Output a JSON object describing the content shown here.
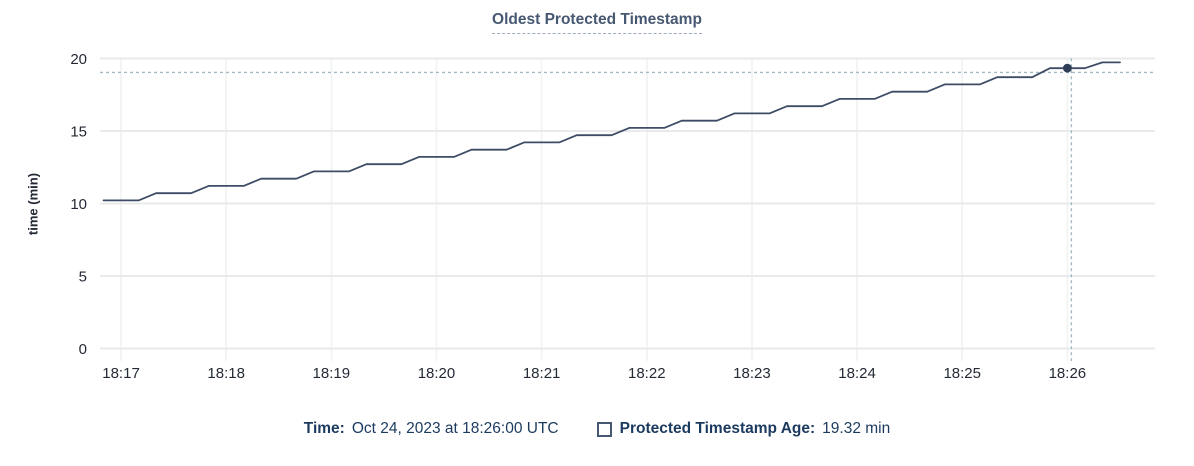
{
  "chart_data": {
    "type": "line",
    "title": "Oldest Protected Timestamp",
    "xlabel": "",
    "ylabel": "time (min)",
    "ylim": [
      0,
      20
    ],
    "yticks": [
      0,
      5,
      10,
      15,
      20
    ],
    "x_ticks": [
      "18:17",
      "18:18",
      "18:19",
      "18:20",
      "18:21",
      "18:22",
      "18:23",
      "18:24",
      "18:25",
      "18:26"
    ],
    "x_range": [
      "18:16:48",
      "18:26:50"
    ],
    "grid": true,
    "legend_position": "bottom",
    "series": [
      {
        "name": "Protected Timestamp Age",
        "color": "#3e4c66",
        "points": [
          [
            "18:16:50",
            10.2
          ],
          [
            "18:17:10",
            10.2
          ],
          [
            "18:17:20",
            10.7
          ],
          [
            "18:17:40",
            10.7
          ],
          [
            "18:17:50",
            11.2
          ],
          [
            "18:18:10",
            11.2
          ],
          [
            "18:18:20",
            11.7
          ],
          [
            "18:18:40",
            11.7
          ],
          [
            "18:18:50",
            12.2
          ],
          [
            "18:19:10",
            12.2
          ],
          [
            "18:19:20",
            12.7
          ],
          [
            "18:19:40",
            12.7
          ],
          [
            "18:19:50",
            13.2
          ],
          [
            "18:20:10",
            13.2
          ],
          [
            "18:20:20",
            13.7
          ],
          [
            "18:20:40",
            13.7
          ],
          [
            "18:20:50",
            14.2
          ],
          [
            "18:21:10",
            14.2
          ],
          [
            "18:21:20",
            14.7
          ],
          [
            "18:21:40",
            14.7
          ],
          [
            "18:21:50",
            15.2
          ],
          [
            "18:22:10",
            15.2
          ],
          [
            "18:22:20",
            15.7
          ],
          [
            "18:22:40",
            15.7
          ],
          [
            "18:22:50",
            16.2
          ],
          [
            "18:23:10",
            16.2
          ],
          [
            "18:23:20",
            16.7
          ],
          [
            "18:23:40",
            16.7
          ],
          [
            "18:23:50",
            17.2
          ],
          [
            "18:24:10",
            17.2
          ],
          [
            "18:24:20",
            17.7
          ],
          [
            "18:24:40",
            17.7
          ],
          [
            "18:24:50",
            18.2
          ],
          [
            "18:25:10",
            18.2
          ],
          [
            "18:25:20",
            18.7
          ],
          [
            "18:25:40",
            18.7
          ],
          [
            "18:25:50",
            19.32
          ],
          [
            "18:26:10",
            19.32
          ],
          [
            "18:26:20",
            19.72
          ],
          [
            "18:26:30",
            19.72
          ]
        ]
      }
    ],
    "hover": {
      "time": "18:26:00",
      "value": 19.32
    }
  },
  "legend": {
    "time_label": "Time:",
    "time_value": "Oct 24, 2023 at 18:26:00 UTC",
    "series_label": "Protected Timestamp Age:",
    "series_value": "19.32 min"
  },
  "colors": {
    "title": "#475872",
    "tick_text": "#242a35",
    "axis_label": "#242a35",
    "line": "#3e4c66",
    "dot": "#2f3f58",
    "grid_horizontal": "#e9eaeb",
    "grid_vertical": "#f3f4f4",
    "crosshair": "#a3bac4",
    "legend_text": "#1b3a5e",
    "swatch_border": "#475872"
  }
}
